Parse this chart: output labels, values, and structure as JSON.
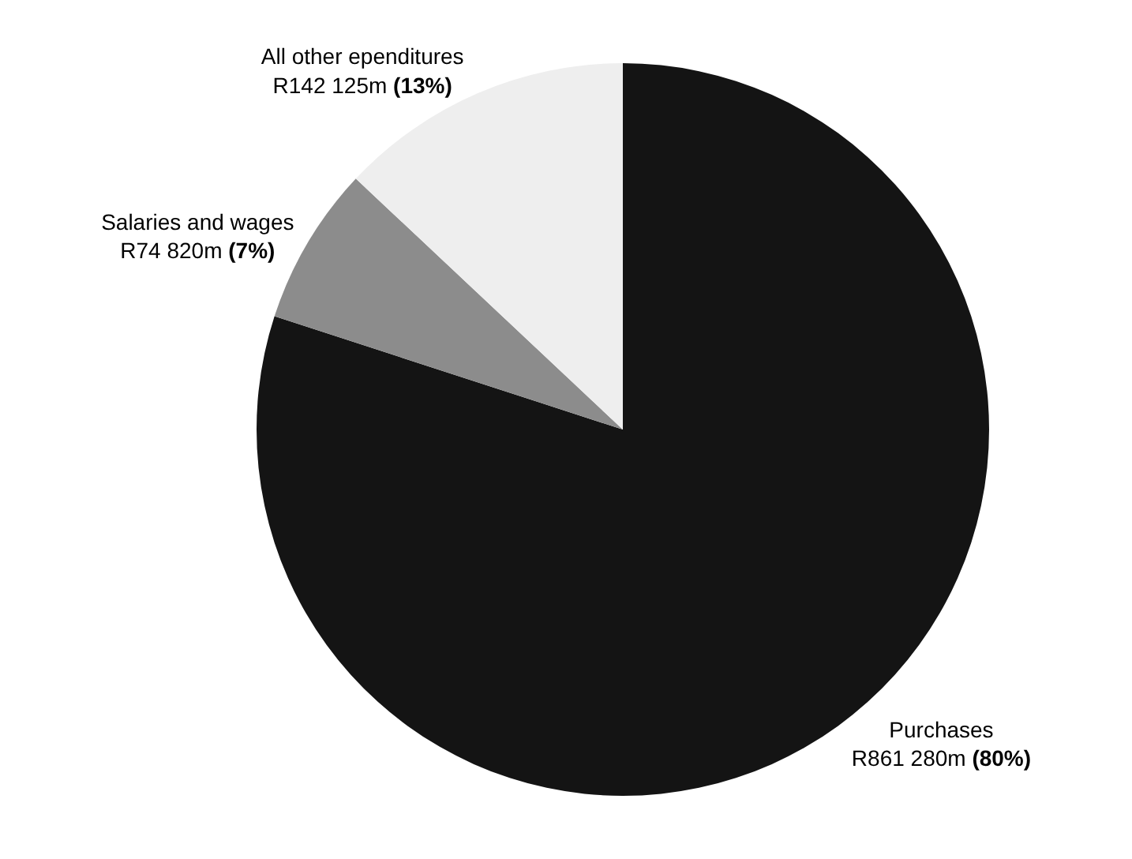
{
  "chart_data": {
    "type": "pie",
    "categories": [
      "Purchases",
      "Salaries and wages",
      "All other ependitures"
    ],
    "values": [
      80,
      7,
      13
    ],
    "value_labels": [
      "R861 280m (80%)",
      "R74 820m (7%)",
      "R142 125m (13%)"
    ],
    "colors": [
      "#141414",
      "#8c8c8c",
      "#eeeeee"
    ],
    "legend": false
  }
}
